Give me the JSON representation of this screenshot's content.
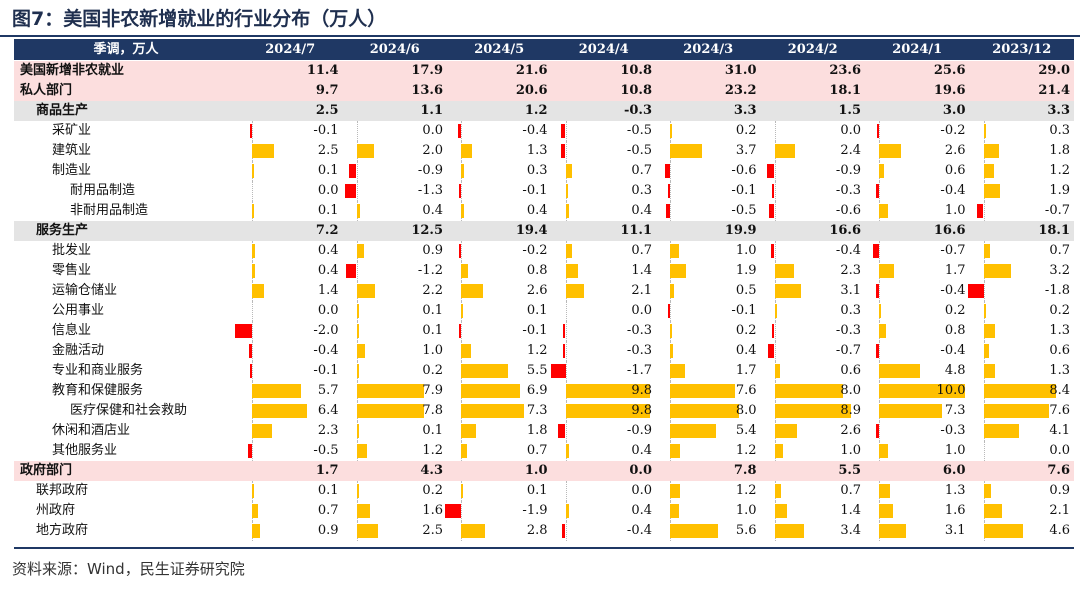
{
  "title": "图7：美国非农新增就业的行业分布（万人）",
  "source": "资料来源：Wind，民生证券研究院",
  "colors": {
    "header_bg": "#1f3864",
    "positive_bar": "#ffc000",
    "negative_bar": "#ff0000",
    "pink_row": "#fcdede",
    "gray_row": "#e4e4e4"
  },
  "chart_data": {
    "type": "table",
    "header_label": "季调，万人",
    "columns": [
      "2024/7",
      "2024/6",
      "2024/5",
      "2024/4",
      "2024/3",
      "2024/2",
      "2024/1",
      "2023/12"
    ],
    "rows": [
      {
        "label": "美国新增非农就业",
        "level": 0,
        "style": "bold-pink",
        "bars": false,
        "values": [
          11.4,
          17.9,
          21.6,
          10.8,
          31.0,
          23.6,
          25.6,
          29.0
        ]
      },
      {
        "label": "私人部门",
        "level": 0,
        "style": "bold-pink",
        "bars": false,
        "values": [
          9.7,
          13.6,
          20.6,
          10.8,
          23.2,
          18.1,
          19.6,
          21.4
        ]
      },
      {
        "label": "商品生产",
        "level": 1,
        "style": "bold-gray",
        "bars": false,
        "values": [
          2.5,
          1.1,
          1.2,
          -0.3,
          3.3,
          1.5,
          3.0,
          3.3
        ]
      },
      {
        "label": "采矿业",
        "level": 2,
        "style": "plain",
        "bars": true,
        "values": [
          -0.1,
          0.0,
          -0.4,
          -0.5,
          0.2,
          0.0,
          -0.2,
          0.3
        ]
      },
      {
        "label": "建筑业",
        "level": 2,
        "style": "plain",
        "bars": true,
        "values": [
          2.5,
          2.0,
          1.3,
          -0.5,
          3.7,
          2.4,
          2.6,
          1.8
        ]
      },
      {
        "label": "制造业",
        "level": 2,
        "style": "plain",
        "bars": true,
        "values": [
          0.1,
          -0.9,
          0.3,
          0.7,
          -0.6,
          -0.9,
          0.6,
          1.2
        ]
      },
      {
        "label": "耐用品制造",
        "level": 3,
        "style": "plain",
        "bars": true,
        "values": [
          0.0,
          -1.3,
          -0.1,
          0.3,
          -0.1,
          -0.3,
          -0.4,
          1.9
        ]
      },
      {
        "label": "非耐用品制造",
        "level": 3,
        "style": "plain",
        "bars": true,
        "values": [
          0.1,
          0.4,
          0.4,
          0.4,
          -0.5,
          -0.6,
          1.0,
          -0.7
        ]
      },
      {
        "label": "服务生产",
        "level": 1,
        "style": "bold-gray",
        "bars": false,
        "values": [
          7.2,
          12.5,
          19.4,
          11.1,
          19.9,
          16.6,
          16.6,
          18.1
        ]
      },
      {
        "label": "批发业",
        "level": 2,
        "style": "plain",
        "bars": true,
        "values": [
          0.4,
          0.9,
          -0.2,
          0.7,
          1.0,
          -0.4,
          -0.7,
          0.7
        ]
      },
      {
        "label": "零售业",
        "level": 2,
        "style": "plain",
        "bars": true,
        "values": [
          0.4,
          -1.2,
          0.8,
          1.4,
          1.9,
          2.3,
          1.7,
          3.2
        ]
      },
      {
        "label": "运输仓储业",
        "level": 2,
        "style": "plain",
        "bars": true,
        "values": [
          1.4,
          2.2,
          2.6,
          2.1,
          0.5,
          3.1,
          -0.4,
          -1.8
        ]
      },
      {
        "label": "公用事业",
        "level": 2,
        "style": "plain",
        "bars": true,
        "values": [
          0.0,
          0.1,
          0.1,
          0.0,
          -0.1,
          0.3,
          0.2,
          0.2
        ]
      },
      {
        "label": "信息业",
        "level": 2,
        "style": "plain",
        "bars": true,
        "values": [
          -2.0,
          0.1,
          -0.1,
          -0.3,
          0.2,
          -0.3,
          0.8,
          1.3
        ]
      },
      {
        "label": "金融活动",
        "level": 2,
        "style": "plain",
        "bars": true,
        "values": [
          -0.4,
          1.0,
          1.2,
          -0.3,
          0.4,
          -0.7,
          -0.4,
          0.6
        ]
      },
      {
        "label": "专业和商业服务",
        "level": 2,
        "style": "plain",
        "bars": true,
        "values": [
          -0.1,
          0.2,
          5.5,
          -1.7,
          1.7,
          0.6,
          4.8,
          1.3
        ]
      },
      {
        "label": "教育和保健服务",
        "level": 2,
        "style": "plain",
        "bars": true,
        "values": [
          5.7,
          7.9,
          6.9,
          9.8,
          7.6,
          8.0,
          10.0,
          8.4
        ]
      },
      {
        "label": "医疗保健和社会救助",
        "level": 3,
        "style": "plain",
        "bars": true,
        "values": [
          6.4,
          7.8,
          7.3,
          9.8,
          8.0,
          8.9,
          7.3,
          7.6
        ]
      },
      {
        "label": "休闲和酒店业",
        "level": 2,
        "style": "plain",
        "bars": true,
        "values": [
          2.3,
          0.1,
          1.8,
          -0.9,
          5.4,
          2.6,
          -0.3,
          4.1
        ]
      },
      {
        "label": "其他服务业",
        "level": 2,
        "style": "plain",
        "bars": true,
        "values": [
          -0.5,
          1.2,
          0.7,
          0.4,
          1.2,
          1.0,
          1.0,
          0.0
        ]
      },
      {
        "label": "政府部门",
        "level": 0,
        "style": "bold-pink",
        "bars": false,
        "values": [
          1.7,
          4.3,
          1.0,
          0.0,
          7.8,
          5.5,
          6.0,
          7.6
        ]
      },
      {
        "label": "联邦政府",
        "level": 1,
        "style": "plain",
        "bars": true,
        "values": [
          0.1,
          0.2,
          0.1,
          0.0,
          1.2,
          0.7,
          1.3,
          0.9
        ]
      },
      {
        "label": "州政府",
        "level": 1,
        "style": "plain",
        "bars": true,
        "values": [
          0.7,
          1.6,
          -1.9,
          0.4,
          1.0,
          1.4,
          1.6,
          2.1
        ]
      },
      {
        "label": "地方政府",
        "level": 1,
        "style": "plain",
        "bars": true,
        "values": [
          0.9,
          2.5,
          2.8,
          -0.4,
          5.6,
          3.4,
          3.1,
          4.6
        ]
      }
    ]
  }
}
